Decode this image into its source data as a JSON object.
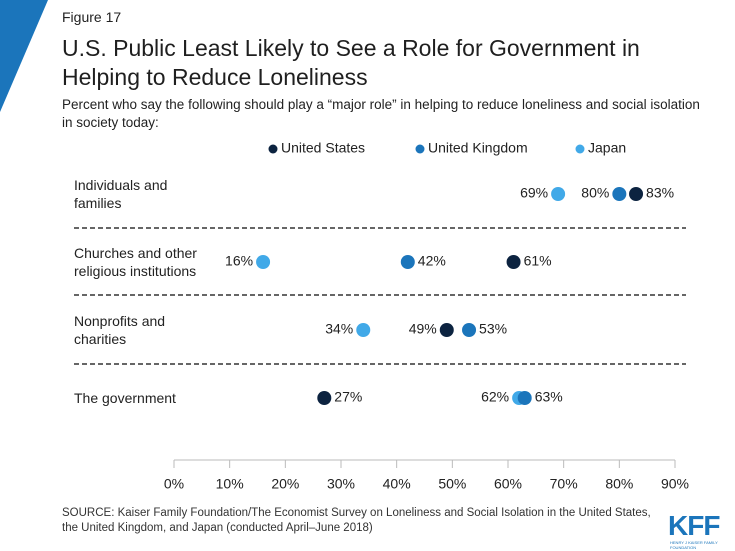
{
  "figure_label": "Figure 17",
  "chart_data": {
    "type": "dot",
    "title": "U.S. Public Least Likely to See a Role for Government in Helping to Reduce Loneliness",
    "subtitle": "Percent who say the following should play a “major role” in helping to reduce loneliness and social isolation in society today:",
    "categories": [
      "Individuals and families",
      "Churches and other religious institutions",
      "Nonprofits and charities",
      "The government"
    ],
    "series": [
      {
        "name": "United States",
        "color": "#0c2340",
        "values": [
          83,
          61,
          49,
          27
        ],
        "value_labels": [
          "83%",
          "61%",
          "49%",
          "27%"
        ]
      },
      {
        "name": "United Kingdom",
        "color": "#1b75bb",
        "values": [
          80,
          42,
          53,
          63
        ],
        "value_labels": [
          "80%",
          "42%",
          "53%",
          "63%"
        ]
      },
      {
        "name": "Japan",
        "color": "#41a9e8",
        "values": [
          69,
          16,
          34,
          62
        ],
        "value_labels": [
          "69%",
          "16%",
          "34%",
          "62%"
        ]
      }
    ],
    "xlim": [
      0,
      90
    ],
    "xticks": [
      {
        "value": 0,
        "label": "0%"
      },
      {
        "value": 10,
        "label": "10%"
      },
      {
        "value": 20,
        "label": "20%"
      },
      {
        "value": 30,
        "label": "30%"
      },
      {
        "value": 40,
        "label": "40%"
      },
      {
        "value": 50,
        "label": "50%"
      },
      {
        "value": 60,
        "label": "60%"
      },
      {
        "value": 70,
        "label": "70%"
      },
      {
        "value": 80,
        "label": "80%"
      },
      {
        "value": 90,
        "label": "90%"
      }
    ],
    "source": "SOURCE: Kaiser Family Foundation/The Economist Survey on Loneliness and Social Isolation in the United States, the United Kingdom, and Japan (conducted April–June 2018)"
  },
  "logo": {
    "name": "KFF",
    "tagline": "HENRY J KAISER FAMILY FOUNDATION"
  }
}
